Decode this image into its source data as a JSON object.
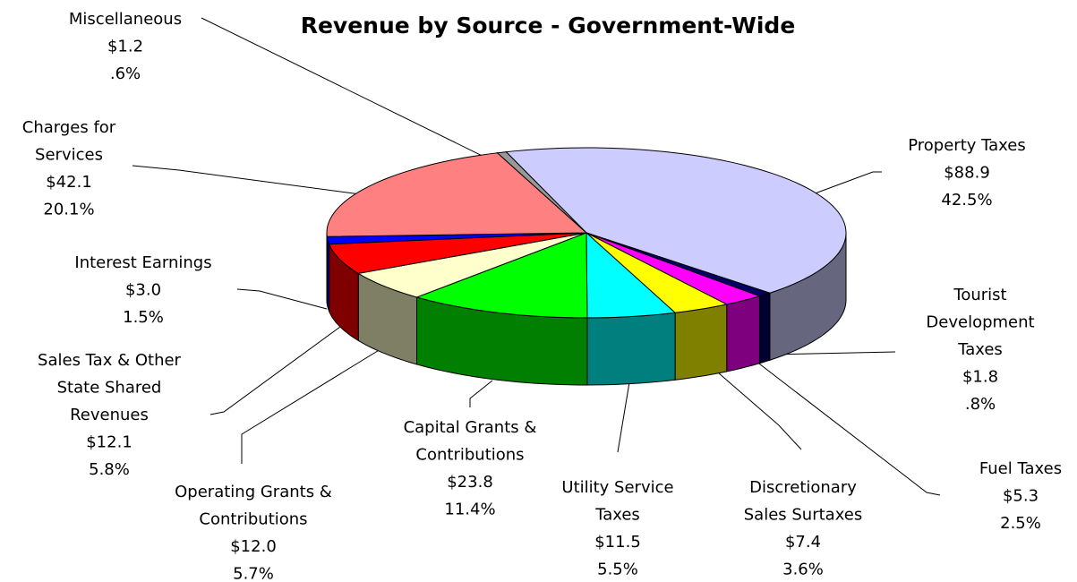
{
  "chart_data": {
    "type": "pie",
    "title": "Revenue by Source - Government-Wide",
    "categories": [
      [
        "Property Taxes"
      ],
      [
        "Tourist",
        "Development",
        "Taxes"
      ],
      [
        "Fuel Taxes"
      ],
      [
        "Discretionary",
        "Sales Surtaxes"
      ],
      [
        "Utility Service",
        "Taxes"
      ],
      [
        "Capital Grants &",
        "Contributions"
      ],
      [
        "Operating Grants &",
        "Contributions"
      ],
      [
        "Sales Tax & Other",
        "State Shared",
        "Revenues"
      ],
      [
        "Interest Earnings"
      ],
      [
        "Charges for",
        "Services"
      ],
      [
        "Miscellaneous"
      ]
    ],
    "values": [
      88.9,
      1.8,
      5.3,
      7.4,
      11.5,
      23.8,
      12.0,
      12.1,
      3.0,
      42.1,
      1.2
    ],
    "value_labels": [
      "$88.9",
      "$1.8",
      "$5.3",
      "$7.4",
      "$11.5",
      "$23.8",
      "$12.0",
      "$12.1",
      "$3.0",
      "$42.1",
      "$1.2"
    ],
    "percents": [
      42.5,
      0.8,
      2.5,
      3.6,
      5.5,
      11.4,
      5.7,
      5.8,
      1.5,
      20.1,
      0.6
    ],
    "percent_labels": [
      "42.5%",
      ".8%",
      "2.5%",
      "3.6%",
      "5.5%",
      "11.4%",
      "5.7%",
      "5.8%",
      "1.5%",
      "20.1%",
      ".6%"
    ],
    "colors": [
      "#ccccff",
      "#000066",
      "#ff00ff",
      "#ffff00",
      "#00ffff",
      "#00ff00",
      "#ffffcc",
      "#ff0000",
      "#0000ff",
      "#ff8080",
      "#999999"
    ]
  }
}
